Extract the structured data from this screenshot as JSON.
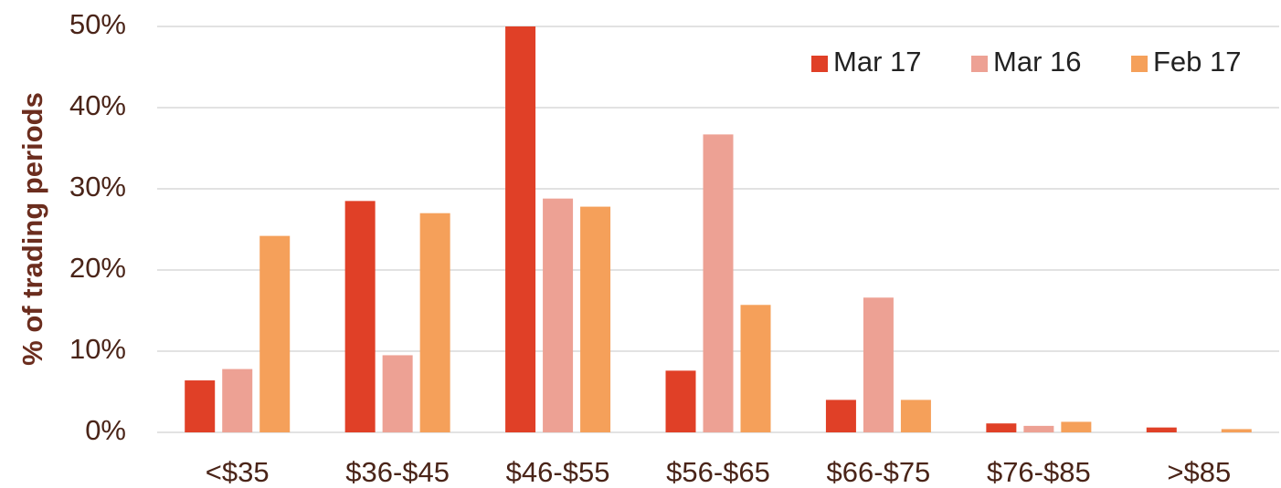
{
  "chart_data": {
    "type": "bar",
    "y_label": "% of trading periods",
    "categories": [
      "<$35",
      "$36-$45",
      "$46-$55",
      "$56-$65",
      "$66-$75",
      "$76-$85",
      ">$85"
    ],
    "series": [
      {
        "name": "Mar 17",
        "color": "#e04027",
        "values": [
          6.4,
          28.5,
          50,
          7.6,
          4.0,
          1.1,
          0.6
        ]
      },
      {
        "name": "Mar 16",
        "color": "#eda194",
        "values": [
          7.8,
          9.5,
          28.8,
          36.7,
          16.6,
          0.8,
          0
        ]
      },
      {
        "name": "Feb 17",
        "color": "#f5a05a",
        "values": [
          24.2,
          27.0,
          27.8,
          15.7,
          4.0,
          1.3,
          0.4
        ]
      }
    ],
    "ylim": [
      0,
      50
    ],
    "yticks": [
      {
        "value": 0,
        "label": "0%"
      },
      {
        "value": 10,
        "label": "10%"
      },
      {
        "value": 20,
        "label": "20%"
      },
      {
        "value": 30,
        "label": "30%"
      },
      {
        "value": 40,
        "label": "40%"
      },
      {
        "value": 50,
        "label": "50%"
      }
    ],
    "grid": true,
    "legend": "top-right"
  }
}
